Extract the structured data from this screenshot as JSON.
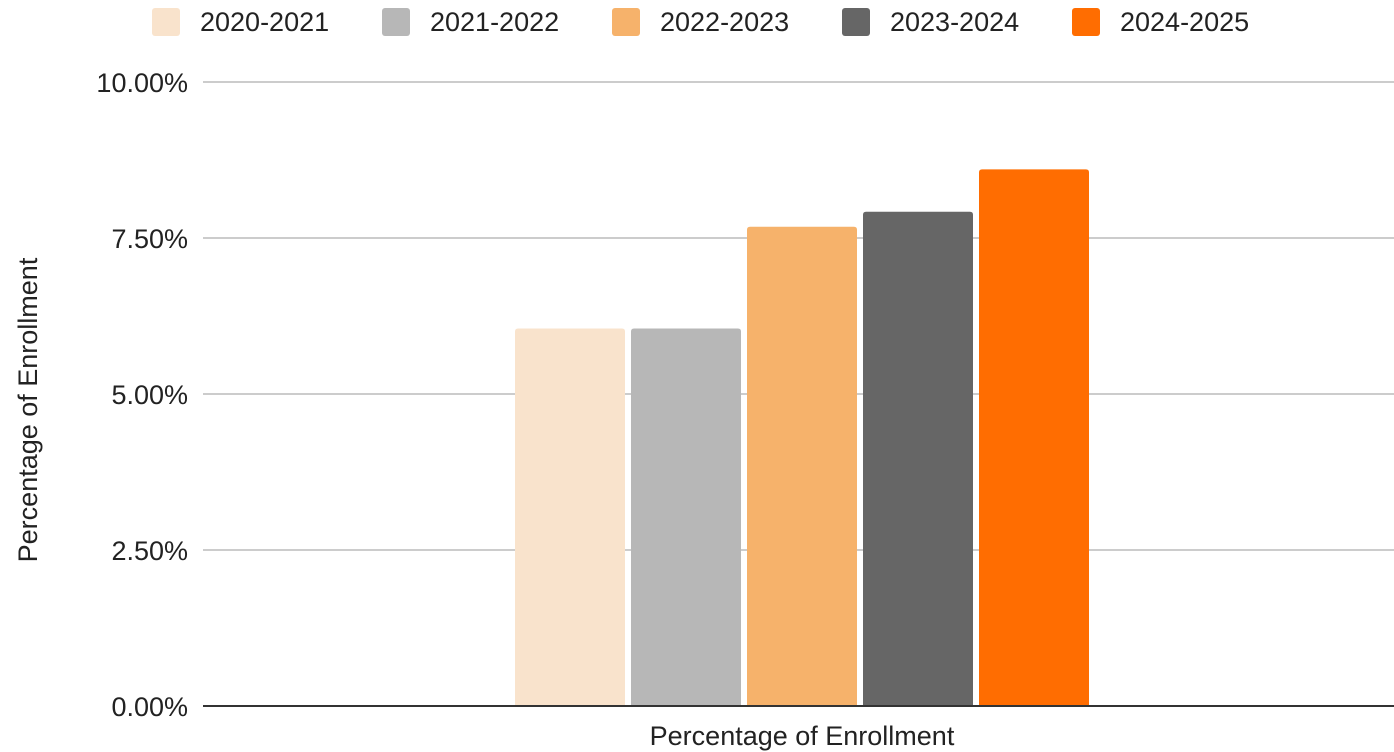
{
  "chart_data": {
    "type": "bar",
    "title": "",
    "xlabel": "Percentage of Enrollment",
    "ylabel": "Percentage of Enrollment",
    "categories": [
      "Percentage of Enrollment"
    ],
    "series": [
      {
        "name": "2020-2021",
        "values": [
          6.05
        ],
        "color": "#F9E3CC"
      },
      {
        "name": "2021-2022",
        "values": [
          6.05
        ],
        "color": "#B7B7B7"
      },
      {
        "name": "2022-2023",
        "values": [
          7.68
        ],
        "color": "#F6B26B"
      },
      {
        "name": "2023-2024",
        "values": [
          7.92
        ],
        "color": "#666666"
      },
      {
        "name": "2024-2025",
        "values": [
          8.6
        ],
        "color": "#FF6D01"
      }
    ],
    "ylim": [
      0,
      10
    ],
    "yticks": [
      0,
      2.5,
      5,
      7.5,
      10
    ],
    "ytick_labels": [
      "0.00%",
      "2.50%",
      "5.00%",
      "7.50%",
      "10.00%"
    ],
    "grid": true,
    "legend_position": "top"
  }
}
